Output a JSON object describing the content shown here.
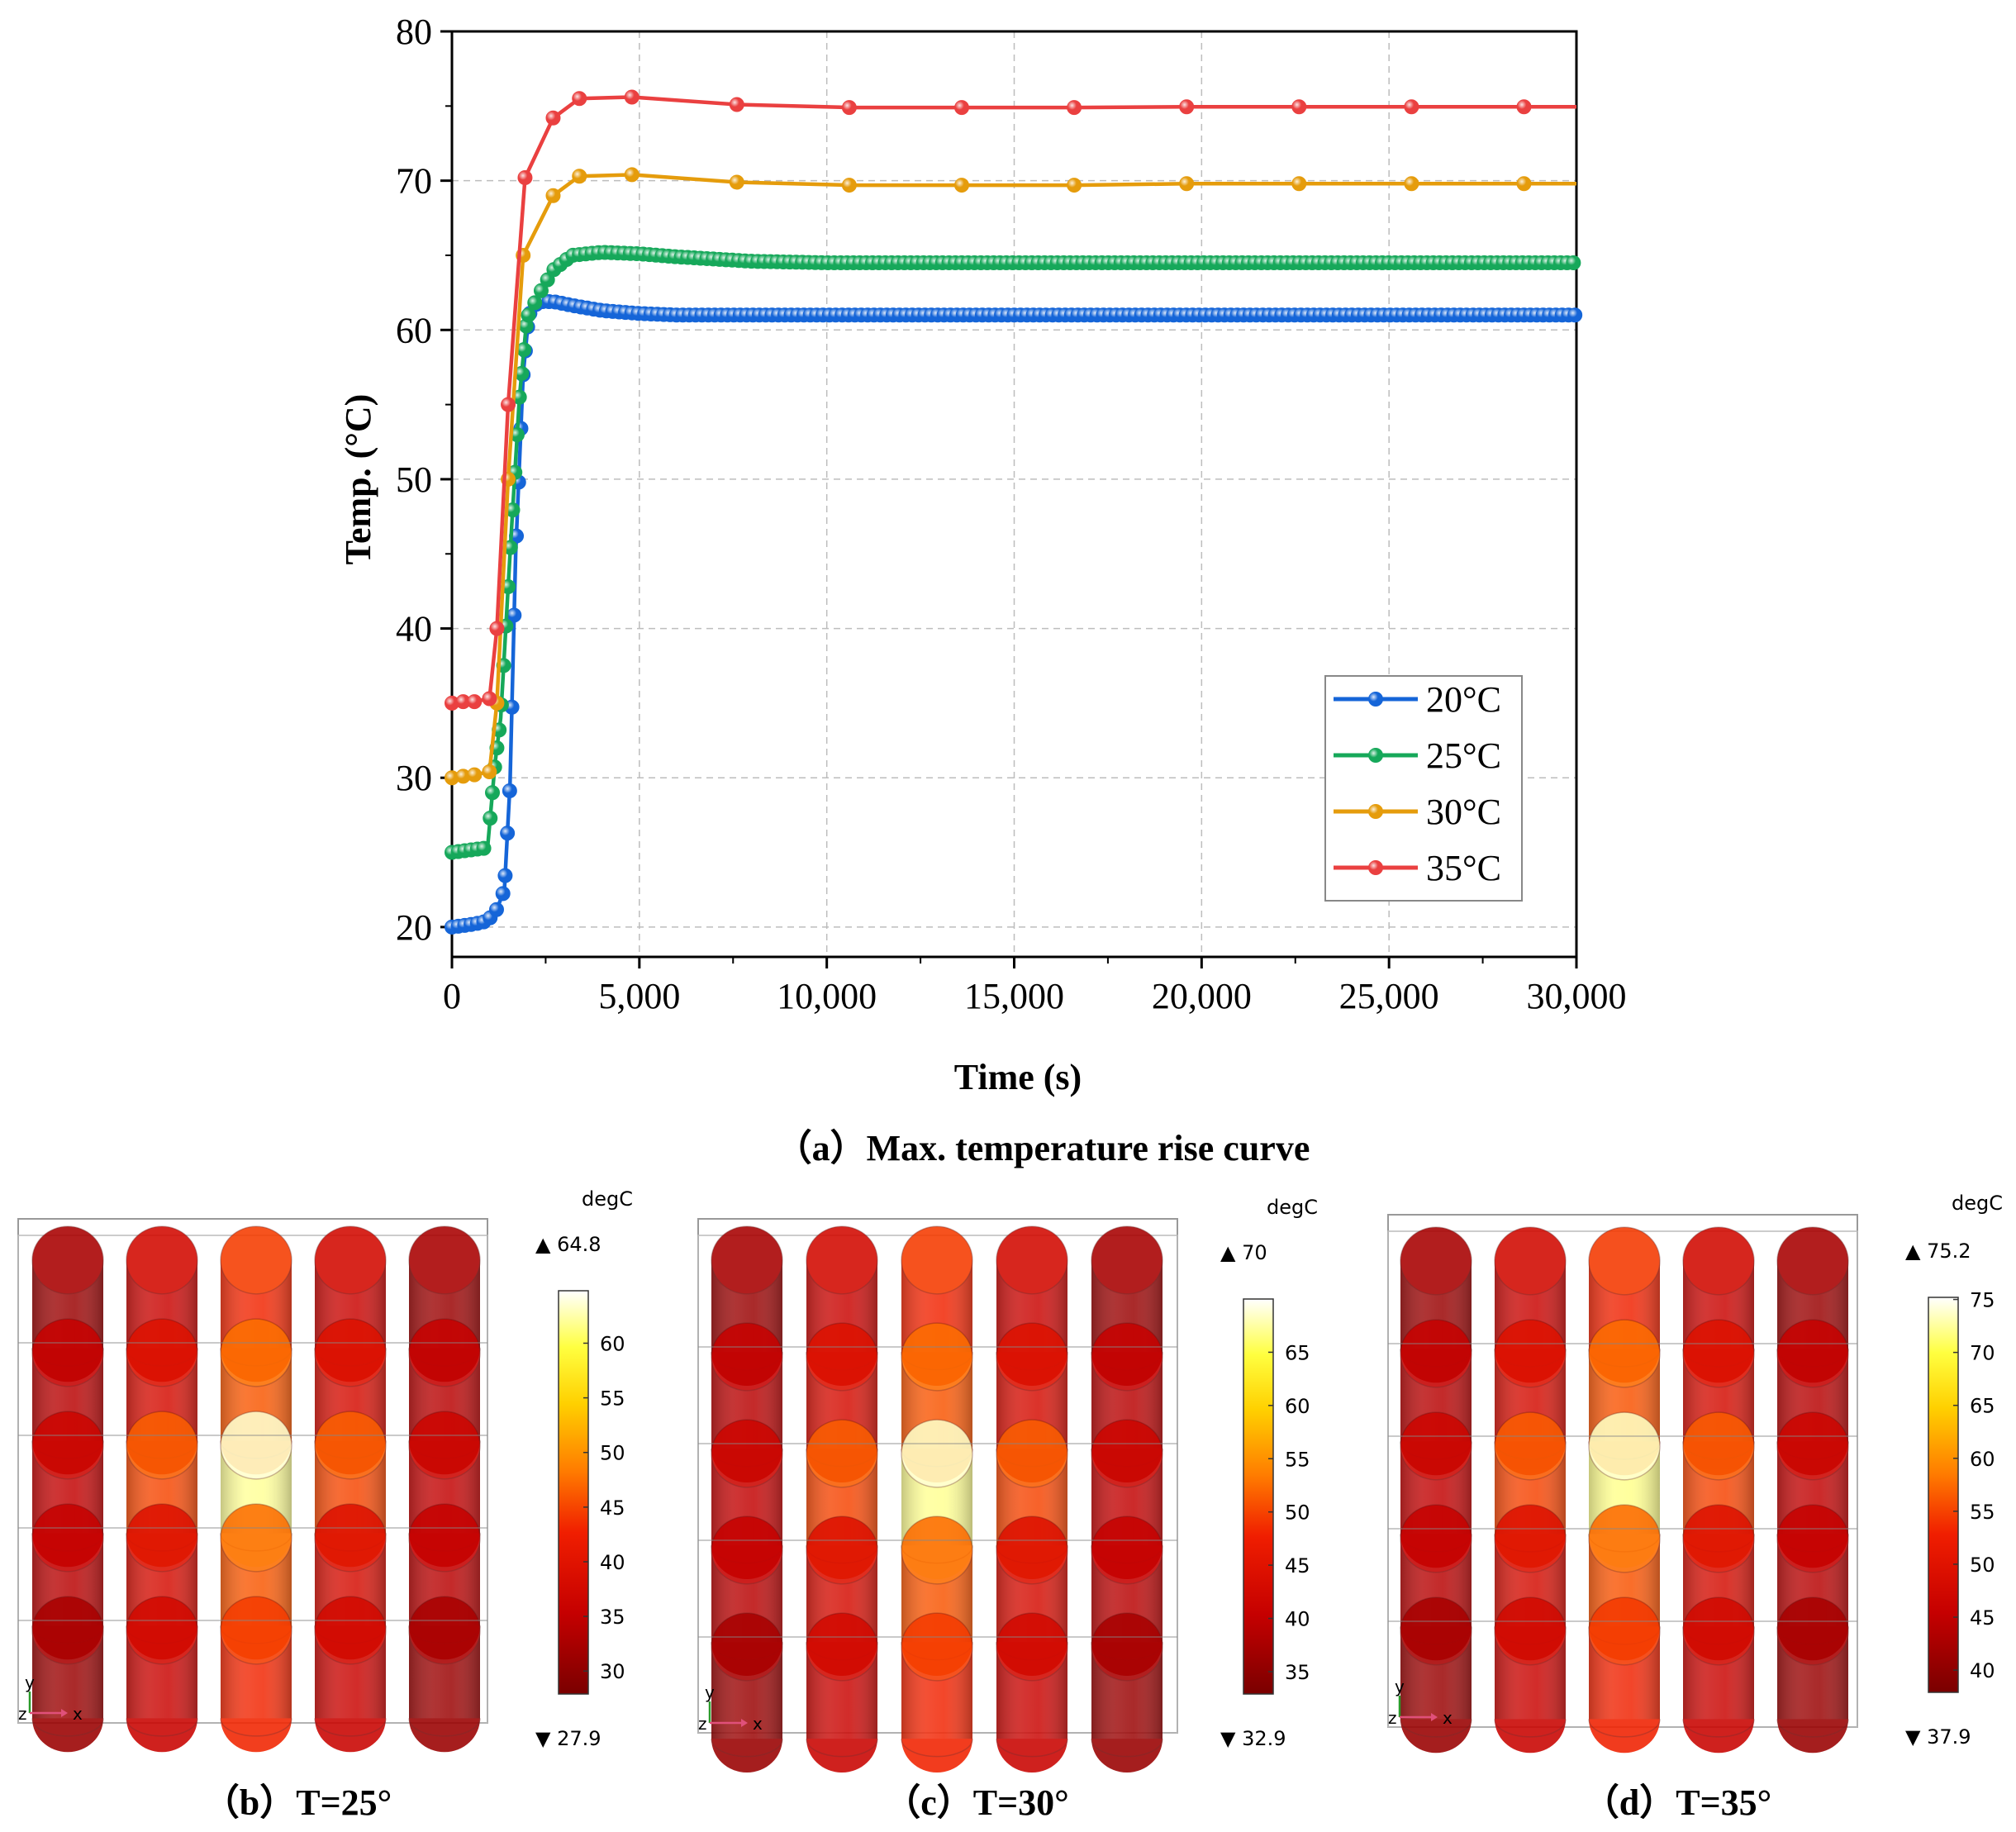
{
  "chart_data": {
    "type": "line",
    "ylabel": "Temp. (°C)",
    "xlabel": "Time (s)",
    "xlim": [
      0,
      30000
    ],
    "ylim": [
      18,
      80
    ],
    "grid": true,
    "legend_position": "bottom-right",
    "x_ticks": [
      0,
      5000,
      10000,
      15000,
      20000,
      25000,
      30000
    ],
    "x_tick_labels": [
      "0",
      "5,000",
      "10,000",
      "15,000",
      "20,000",
      "25,000",
      "30,000"
    ],
    "y_ticks": [
      20,
      30,
      40,
      50,
      60,
      70,
      80
    ],
    "y_tick_labels": [
      "20",
      "30",
      "40",
      "50",
      "60",
      "70",
      "80"
    ],
    "series": [
      {
        "name": "20°C",
        "color": "#1565d8",
        "points": [
          [
            0,
            20
          ],
          [
            300,
            20.1
          ],
          [
            600,
            20.2
          ],
          [
            950,
            20.4
          ],
          [
            1200,
            21.2
          ],
          [
            1400,
            22.5
          ],
          [
            1550,
            29.6
          ],
          [
            1700,
            45
          ],
          [
            1900,
            57
          ],
          [
            2050,
            61
          ],
          [
            2300,
            61.9
          ],
          [
            2700,
            61.9
          ],
          [
            3300,
            61.6
          ],
          [
            4000,
            61.3
          ],
          [
            5000,
            61.1
          ],
          [
            6000,
            61.0
          ],
          [
            8000,
            61.0
          ],
          [
            10000,
            61.0
          ],
          [
            15000,
            61.0
          ],
          [
            20000,
            61.0
          ],
          [
            25000,
            61.0
          ],
          [
            30000,
            61.0
          ]
        ],
        "marker_spacing": 170
      },
      {
        "name": "25°C",
        "color": "#16a85a",
        "points": [
          [
            0,
            25
          ],
          [
            300,
            25.1
          ],
          [
            600,
            25.2
          ],
          [
            950,
            25.3
          ],
          [
            1150,
            31
          ],
          [
            1300,
            34
          ],
          [
            1550,
            45
          ],
          [
            1800,
            55.5
          ],
          [
            2000,
            60.8
          ],
          [
            2350,
            62.5
          ],
          [
            2700,
            64
          ],
          [
            3200,
            65.0
          ],
          [
            4000,
            65.2
          ],
          [
            5000,
            65.1
          ],
          [
            6000,
            64.9
          ],
          [
            8000,
            64.6
          ],
          [
            10000,
            64.5
          ],
          [
            15000,
            64.5
          ],
          [
            20000,
            64.5
          ],
          [
            25000,
            64.5
          ],
          [
            30000,
            64.5
          ]
        ],
        "marker_spacing": 170
      },
      {
        "name": "30°C",
        "color": "#e59c0c",
        "points": [
          [
            0,
            30
          ],
          [
            300,
            30.1
          ],
          [
            600,
            30.2
          ],
          [
            1000,
            30.4
          ],
          [
            1200,
            35
          ],
          [
            1500,
            50
          ],
          [
            1900,
            65
          ],
          [
            2700,
            69
          ],
          [
            3400,
            70.3
          ],
          [
            4800,
            70.4
          ],
          [
            7600,
            69.9
          ],
          [
            10600,
            69.7
          ],
          [
            13600,
            69.7
          ],
          [
            16600,
            69.7
          ],
          [
            19600,
            69.8
          ],
          [
            22600,
            69.8
          ],
          [
            25600,
            69.8
          ],
          [
            28600,
            69.8
          ],
          [
            30000,
            69.8
          ]
        ],
        "marker_spacing": 0
      },
      {
        "name": "35°C",
        "color": "#ea4040",
        "points": [
          [
            0,
            35
          ],
          [
            300,
            35.1
          ],
          [
            600,
            35.1
          ],
          [
            1000,
            35.3
          ],
          [
            1200,
            40
          ],
          [
            1500,
            55
          ],
          [
            1950,
            70.2
          ],
          [
            2700,
            74.2
          ],
          [
            3400,
            75.5
          ],
          [
            4800,
            75.6
          ],
          [
            7600,
            75.1
          ],
          [
            10600,
            74.9
          ],
          [
            13600,
            74.9
          ],
          [
            16600,
            74.9
          ],
          [
            19600,
            74.95
          ],
          [
            22600,
            74.95
          ],
          [
            25600,
            74.95
          ],
          [
            28600,
            74.95
          ],
          [
            30000,
            74.95
          ]
        ],
        "marker_spacing": 0
      }
    ]
  },
  "captions": {
    "a": "（a）Max. temperature rise curve",
    "b": "（b）T=25°",
    "c": "（c）T=30°",
    "d": "（d）T=35°"
  },
  "heatmaps": [
    {
      "id": "b",
      "unit": "degC",
      "max_label": "▲ 64.8",
      "min_label": "▼ 27.9",
      "min": 27.9,
      "max": 64.8,
      "scale_ticks": [
        30,
        35,
        40,
        45,
        50,
        55,
        60
      ],
      "axis_y": "y",
      "axis_z": "z",
      "axis_x": "x",
      "cell_temps": [
        [
          31,
          36,
          43,
          36,
          31
        ],
        [
          34,
          38,
          46,
          38,
          34
        ],
        [
          35,
          45,
          62,
          45,
          35
        ],
        [
          34,
          38,
          46,
          38,
          34
        ],
        [
          31,
          36,
          43,
          36,
          31
        ]
      ]
    },
    {
      "id": "c",
      "unit": "degC",
      "max_label": "▲ 70",
      "min_label": "▼ 32.9",
      "min": 32.9,
      "max": 70,
      "scale_ticks": [
        35,
        40,
        45,
        50,
        55,
        60,
        65
      ],
      "axis_y": "y",
      "axis_z": "z",
      "axis_x": "x",
      "cell_temps": [
        [
          36,
          41,
          48,
          41,
          36
        ],
        [
          39,
          43,
          51,
          43,
          39
        ],
        [
          40,
          50,
          67,
          50,
          40
        ],
        [
          39,
          43,
          51,
          43,
          39
        ],
        [
          36,
          41,
          48,
          41,
          36
        ]
      ]
    },
    {
      "id": "d",
      "unit": "degC",
      "max_label": "▲ 75.2",
      "min_label": "▼ 37.9",
      "min": 37.9,
      "max": 75.2,
      "scale_ticks": [
        40,
        45,
        50,
        55,
        60,
        65,
        70,
        75
      ],
      "axis_y": "y",
      "axis_z": "z",
      "axis_x": "x",
      "cell_temps": [
        [
          41,
          46,
          53,
          46,
          41
        ],
        [
          44,
          48,
          56,
          48,
          44
        ],
        [
          45,
          55,
          72,
          55,
          45
        ],
        [
          44,
          48,
          56,
          48,
          44
        ],
        [
          41,
          46,
          53,
          46,
          41
        ]
      ]
    }
  ]
}
